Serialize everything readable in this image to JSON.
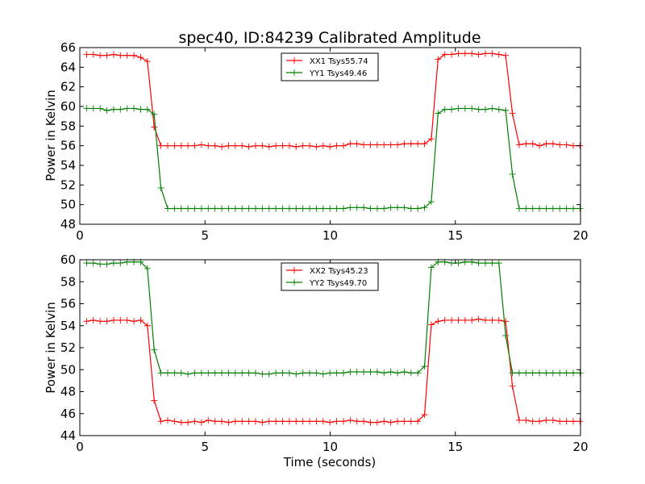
{
  "chart_data": [
    {
      "type": "line",
      "title": "spec40, ID:84239 Calibrated Amplitude",
      "xlabel": "",
      "ylabel": "Power in Kelvin",
      "xlim": [
        0,
        20
      ],
      "ylim": [
        48,
        66
      ],
      "xticks": [
        "0",
        "5",
        "10",
        "15",
        "20"
      ],
      "yticks": [
        "48",
        "50",
        "52",
        "54",
        "56",
        "58",
        "60",
        "62",
        "64",
        "66"
      ],
      "grid": false,
      "legend_position": "top-center",
      "x": [
        0.27,
        0.54,
        0.81,
        1.08,
        1.35,
        1.62,
        1.89,
        2.16,
        2.43,
        2.7,
        2.97,
        3.24,
        3.51,
        3.78,
        4.05,
        4.32,
        4.59,
        4.86,
        5.13,
        5.4,
        5.67,
        5.94,
        6.21,
        6.48,
        6.75,
        7.02,
        7.29,
        7.56,
        7.83,
        8.1,
        8.37,
        8.64,
        8.91,
        9.18,
        9.45,
        9.72,
        9.99,
        10.26,
        10.53,
        10.8,
        11.07,
        11.34,
        11.61,
        11.88,
        12.15,
        12.42,
        12.69,
        12.96,
        13.23,
        13.5,
        13.77,
        14.04,
        14.31,
        14.58,
        14.85,
        15.12,
        15.39,
        15.66,
        15.93,
        16.2,
        16.47,
        16.74,
        17.01,
        17.28,
        17.55,
        17.82,
        18.09,
        18.36,
        18.63,
        18.9,
        19.17,
        19.44,
        19.71,
        19.98
      ],
      "series": [
        {
          "name": "XX1 Tsys55.74",
          "color": "#ff0000",
          "values": [
            65.3,
            65.3,
            65.2,
            65.2,
            65.3,
            65.2,
            65.2,
            65.2,
            65.0,
            64.6,
            57.9,
            56.0,
            56.0,
            56.0,
            56.0,
            56.0,
            56.0,
            56.1,
            56.0,
            56.0,
            55.9,
            56.0,
            56.0,
            56.0,
            55.9,
            56.0,
            56.0,
            55.9,
            56.0,
            56.0,
            56.0,
            55.9,
            56.0,
            56.0,
            55.9,
            56.0,
            55.9,
            56.0,
            56.0,
            56.2,
            56.2,
            56.1,
            56.1,
            56.1,
            56.1,
            56.1,
            56.1,
            56.2,
            56.2,
            56.2,
            56.2,
            56.7,
            64.8,
            65.3,
            65.3,
            65.4,
            65.4,
            65.4,
            65.3,
            65.4,
            65.4,
            65.3,
            65.2,
            59.3,
            56.1,
            56.2,
            56.2,
            56.0,
            56.2,
            56.2,
            56.1,
            56.1,
            56.0,
            56.0
          ]
        },
        {
          "name": "YY1 Tsys49.46",
          "color": "#008000",
          "values": [
            59.8,
            59.8,
            59.8,
            59.6,
            59.7,
            59.7,
            59.8,
            59.8,
            59.7,
            59.7,
            59.2,
            51.7,
            49.6,
            49.6,
            49.6,
            49.6,
            49.6,
            49.6,
            49.6,
            49.6,
            49.6,
            49.6,
            49.6,
            49.6,
            49.6,
            49.6,
            49.6,
            49.6,
            49.6,
            49.6,
            49.6,
            49.6,
            49.6,
            49.6,
            49.6,
            49.6,
            49.6,
            49.6,
            49.6,
            49.7,
            49.7,
            49.7,
            49.6,
            49.6,
            49.6,
            49.7,
            49.7,
            49.7,
            49.6,
            49.6,
            49.7,
            50.3,
            59.3,
            59.7,
            59.7,
            59.8,
            59.8,
            59.8,
            59.7,
            59.7,
            59.8,
            59.7,
            59.6,
            53.1,
            49.6,
            49.6,
            49.6,
            49.6,
            49.6,
            49.6,
            49.6,
            49.6,
            49.6,
            49.6
          ]
        }
      ]
    },
    {
      "type": "line",
      "title": "",
      "xlabel": "Time (seconds)",
      "ylabel": "Power in Kelvin",
      "xlim": [
        0,
        20
      ],
      "ylim": [
        44,
        60
      ],
      "xticks": [
        "0",
        "5",
        "10",
        "15",
        "20"
      ],
      "yticks": [
        "44",
        "46",
        "48",
        "50",
        "52",
        "54",
        "56",
        "58",
        "60"
      ],
      "grid": false,
      "legend_position": "top-center",
      "x": [
        0.27,
        0.54,
        0.81,
        1.08,
        1.35,
        1.62,
        1.89,
        2.16,
        2.43,
        2.7,
        2.97,
        3.24,
        3.51,
        3.78,
        4.05,
        4.32,
        4.59,
        4.86,
        5.13,
        5.4,
        5.67,
        5.94,
        6.21,
        6.48,
        6.75,
        7.02,
        7.29,
        7.56,
        7.83,
        8.1,
        8.37,
        8.64,
        8.91,
        9.18,
        9.45,
        9.72,
        9.99,
        10.26,
        10.53,
        10.8,
        11.07,
        11.34,
        11.61,
        11.88,
        12.15,
        12.42,
        12.69,
        12.96,
        13.23,
        13.5,
        13.77,
        14.04,
        14.31,
        14.58,
        14.85,
        15.12,
        15.39,
        15.66,
        15.93,
        16.2,
        16.47,
        16.74,
        17.01,
        17.28,
        17.55,
        17.82,
        18.09,
        18.36,
        18.63,
        18.9,
        19.17,
        19.44,
        19.71,
        19.98
      ],
      "series": [
        {
          "name": "XX2 Tsys45.23",
          "color": "#ff0000",
          "values": [
            54.4,
            54.5,
            54.4,
            54.4,
            54.5,
            54.5,
            54.5,
            54.4,
            54.5,
            54.0,
            47.2,
            45.3,
            45.4,
            45.3,
            45.2,
            45.2,
            45.3,
            45.2,
            45.4,
            45.3,
            45.3,
            45.2,
            45.3,
            45.3,
            45.3,
            45.3,
            45.2,
            45.3,
            45.3,
            45.3,
            45.3,
            45.3,
            45.3,
            45.3,
            45.3,
            45.3,
            45.2,
            45.3,
            45.3,
            45.4,
            45.3,
            45.3,
            45.2,
            45.2,
            45.3,
            45.2,
            45.3,
            45.3,
            45.3,
            45.3,
            45.9,
            54.1,
            54.4,
            54.5,
            54.5,
            54.5,
            54.5,
            54.5,
            54.6,
            54.5,
            54.5,
            54.5,
            54.4,
            48.5,
            45.4,
            45.4,
            45.3,
            45.3,
            45.4,
            45.4,
            45.3,
            45.3,
            45.3,
            45.3
          ]
        },
        {
          "name": "YY2 Tsys49.70",
          "color": "#008000",
          "values": [
            59.7,
            59.7,
            59.6,
            59.6,
            59.7,
            59.7,
            59.8,
            59.8,
            59.8,
            59.2,
            51.8,
            49.7,
            49.7,
            49.7,
            49.7,
            49.6,
            49.7,
            49.7,
            49.7,
            49.7,
            49.7,
            49.7,
            49.7,
            49.7,
            49.7,
            49.7,
            49.6,
            49.6,
            49.7,
            49.7,
            49.7,
            49.6,
            49.7,
            49.7,
            49.7,
            49.6,
            49.7,
            49.7,
            49.7,
            49.8,
            49.8,
            49.8,
            49.8,
            49.8,
            49.7,
            49.8,
            49.7,
            49.8,
            49.7,
            49.7,
            50.3,
            59.3,
            59.8,
            59.8,
            59.7,
            59.7,
            59.8,
            59.8,
            59.7,
            59.7,
            59.7,
            59.7,
            53.1,
            49.7,
            49.7,
            49.7,
            49.7,
            49.7,
            49.7,
            49.7,
            49.7,
            49.7,
            49.7,
            49.7
          ]
        }
      ]
    }
  ]
}
